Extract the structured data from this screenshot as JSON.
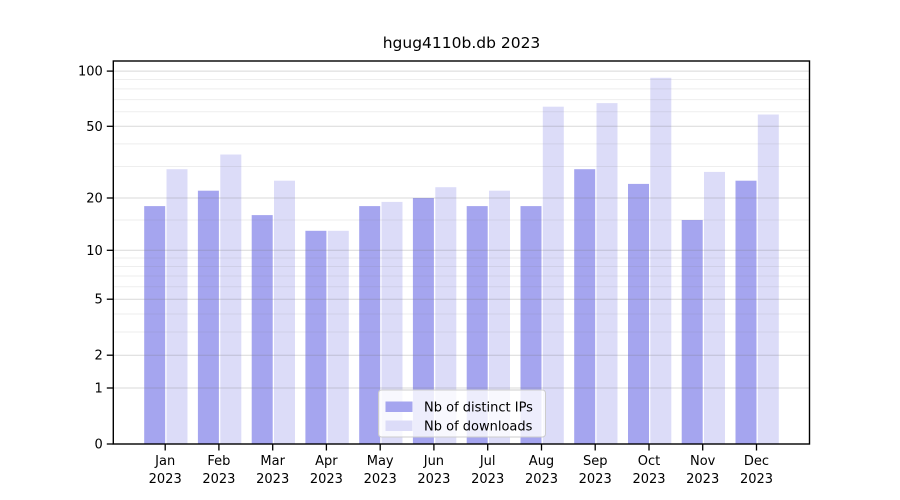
{
  "title": "hgug4110b.db 2023",
  "legend": {
    "items": [
      {
        "label": "Nb of distinct IPs",
        "color": "#a5a5ef"
      },
      {
        "label": "Nb of downloads",
        "color": "#dcdcf8"
      }
    ]
  },
  "axes": {
    "y_tick_labels": [
      "0",
      "1",
      "2",
      "5",
      "10",
      "20",
      "50",
      "100"
    ],
    "x_tick_labels_line1": [
      "Jan",
      "Feb",
      "Mar",
      "Apr",
      "May",
      "Jun",
      "Jul",
      "Aug",
      "Sep",
      "Oct",
      "Nov",
      "Dec"
    ],
    "x_tick_labels_line2": [
      "2023",
      "2023",
      "2023",
      "2023",
      "2023",
      "2023",
      "2023",
      "2023",
      "2023",
      "2023",
      "2023",
      "2023"
    ]
  },
  "chart_data": {
    "type": "bar",
    "title": "hgug4110b.db 2023",
    "categories": [
      "Jan 2023",
      "Feb 2023",
      "Mar 2023",
      "Apr 2023",
      "May 2023",
      "Jun 2023",
      "Jul 2023",
      "Aug 2023",
      "Sep 2023",
      "Oct 2023",
      "Nov 2023",
      "Dec 2023"
    ],
    "series": [
      {
        "name": "Nb of distinct IPs",
        "color": "#a5a5ef",
        "values": [
          18,
          22,
          16,
          13,
          18,
          20,
          18,
          18,
          29,
          24,
          15,
          25
        ]
      },
      {
        "name": "Nb of downloads",
        "color": "#dcdcf8",
        "values": [
          29,
          35,
          25,
          13,
          19,
          23,
          22,
          64,
          67,
          92,
          28,
          58
        ]
      }
    ],
    "xlabel": "",
    "ylabel": "",
    "y_scale": "log1p",
    "y_ticks": [
      0,
      1,
      2,
      5,
      10,
      20,
      50,
      100
    ],
    "y_minor_gridlines": [
      3,
      4,
      6,
      7,
      8,
      9,
      15,
      30,
      40,
      60,
      70,
      80,
      90
    ],
    "ylim": [
      0,
      114
    ],
    "grid": true,
    "legend_position": "lower center"
  },
  "colors": {
    "bar_distinct_ips": "#a5a5ef",
    "bar_downloads": "#dcdcf8",
    "gridline": "#777777",
    "spine": "#000000",
    "legend_border": "#cccccc",
    "legend_background": "rgba(255,255,255,0.8)"
  }
}
